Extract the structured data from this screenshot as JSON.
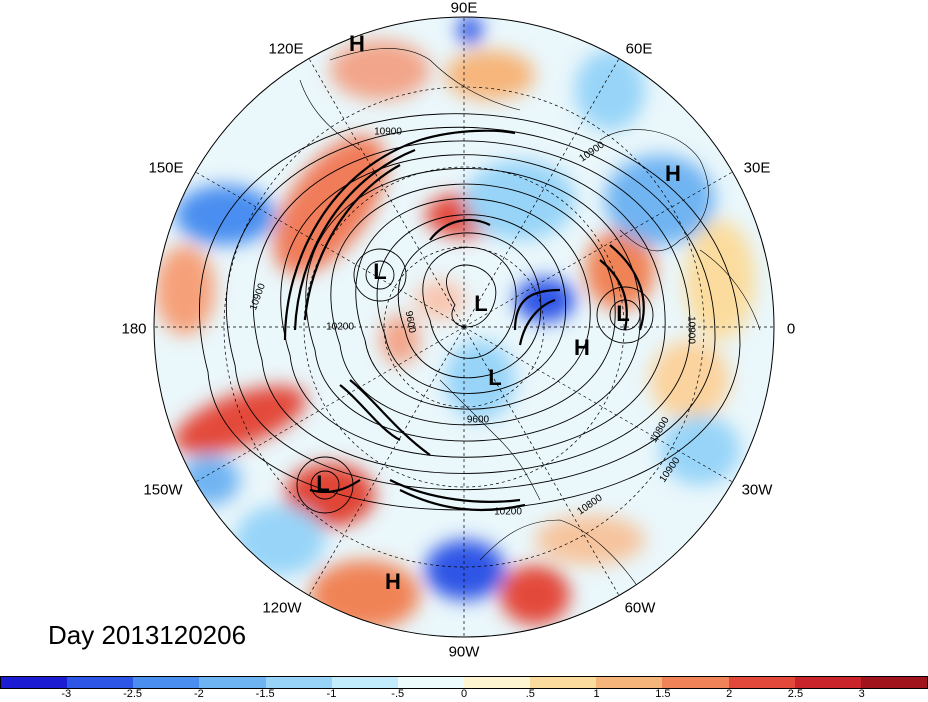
{
  "date_label": "Day 2013120206",
  "longitude_labels": [
    {
      "text": "90E",
      "lon": 90
    },
    {
      "text": "60E",
      "lon": 60
    },
    {
      "text": "30E",
      "lon": 30
    },
    {
      "text": "0",
      "lon": 0
    },
    {
      "text": "30W",
      "lon": -30
    },
    {
      "text": "60W",
      "lon": -60
    },
    {
      "text": "90W",
      "lon": -90
    },
    {
      "text": "120W",
      "lon": -120
    },
    {
      "text": "150W",
      "lon": -150
    },
    {
      "text": "180",
      "lon": 180
    },
    {
      "text": "150E",
      "lon": 150
    },
    {
      "text": "120E",
      "lon": 120
    }
  ],
  "pressure_centers": [
    {
      "text": "H",
      "id": "h1"
    },
    {
      "text": "H",
      "id": "h2"
    },
    {
      "text": "H",
      "id": "h3"
    },
    {
      "text": "H",
      "id": "h4"
    },
    {
      "text": "L",
      "id": "l1"
    },
    {
      "text": "L",
      "id": "l2"
    },
    {
      "text": "L",
      "id": "l3"
    },
    {
      "text": "L",
      "id": "l4"
    },
    {
      "text": "L",
      "id": "l5"
    }
  ],
  "contour_labels": [
    "10900",
    "10900",
    "10900",
    "10200",
    "9600",
    "9600",
    "10900",
    "10800",
    "10900",
    "10800",
    "10200"
  ],
  "colorbar": {
    "ticks": [
      "-3",
      "-2.5",
      "-2",
      "-1.5",
      "-1",
      "-.5",
      "0",
      ".5",
      "1",
      "1.5",
      "2",
      "2.5",
      "3"
    ],
    "colors": [
      "#1c1cd2",
      "#2d55e6",
      "#4a8ef0",
      "#6fb4f2",
      "#97d4f8",
      "#c2ecfb",
      "#eefbfd",
      "#fdf5d2",
      "#fbdc9e",
      "#f6b57a",
      "#f08357",
      "#e3493b",
      "#c8242a",
      "#a0121c"
    ]
  }
}
